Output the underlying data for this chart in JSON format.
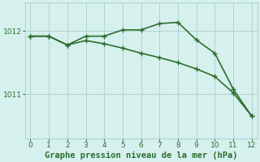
{
  "line1_x": [
    0,
    1,
    2,
    3,
    4,
    5,
    6,
    7,
    8,
    9,
    10,
    11,
    12
  ],
  "line1_y": [
    1011.92,
    1011.92,
    1011.78,
    1011.92,
    1011.92,
    1012.02,
    1012.02,
    1012.12,
    1012.14,
    1011.86,
    1011.65,
    1011.08,
    1010.65
  ],
  "line2_x": [
    0,
    1,
    2,
    3,
    4,
    5,
    6,
    7,
    8,
    9,
    10,
    11,
    12
  ],
  "line2_y": [
    1011.92,
    1011.92,
    1011.78,
    1011.85,
    1011.8,
    1011.73,
    1011.65,
    1011.58,
    1011.5,
    1011.4,
    1011.28,
    1011.02,
    1010.65
  ],
  "line_color": "#2d6e2d",
  "bg_color": "#d6f0ee",
  "grid_color": "#b0d4d0",
  "xlabel": "Graphe pression niveau de la mer (hPa)",
  "xlabel_color": "#2d6e2d",
  "yticks": [
    1011,
    1012
  ],
  "xticks": [
    0,
    1,
    2,
    3,
    4,
    5,
    6,
    7,
    8,
    9,
    10,
    11,
    12
  ],
  "ylim": [
    1010.3,
    1012.45
  ],
  "xlim": [
    -0.3,
    12.3
  ],
  "tick_color": "#2d6e2d",
  "markersize": 3,
  "linewidth": 1.2,
  "xlabel_fontsize": 7.5
}
